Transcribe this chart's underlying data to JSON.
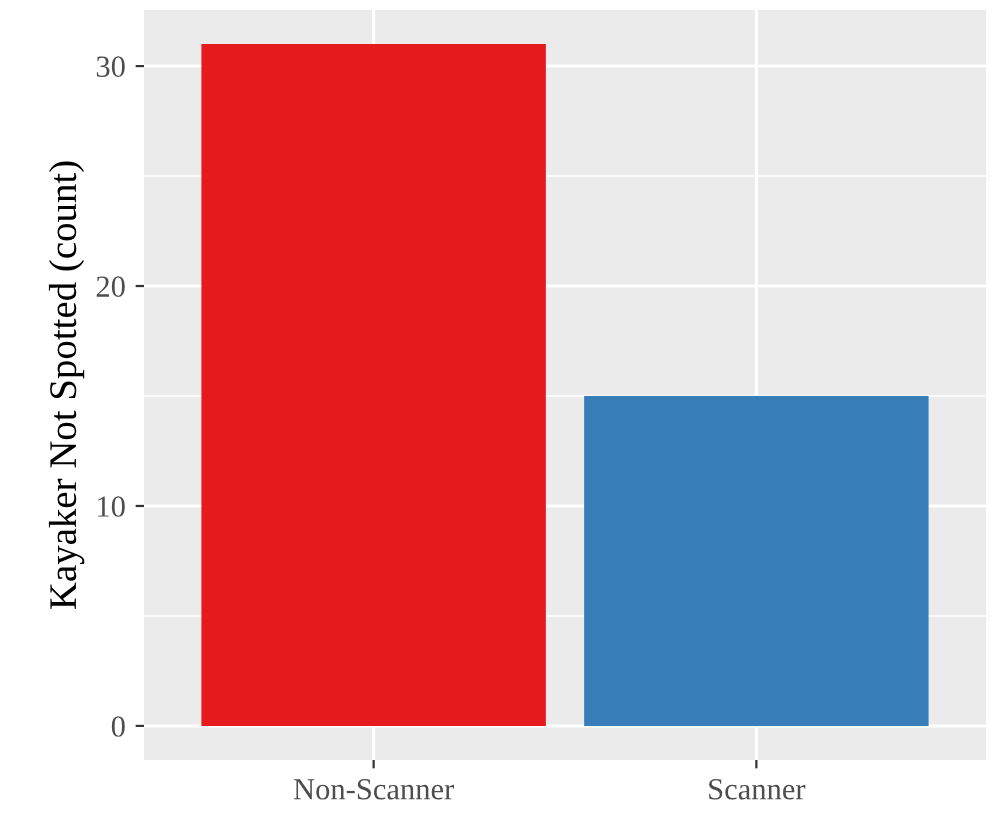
{
  "chart_data": {
    "type": "bar",
    "ylabel": "Kayaker Not Spotted (count)",
    "categories": [
      "Non-Scanner",
      "Scanner"
    ],
    "values": [
      31,
      15
    ],
    "colors": [
      "#e41a1c",
      "#377eb8"
    ],
    "ylim": [
      -1.55,
      32.55
    ],
    "yticks": [
      0,
      10,
      20,
      30
    ],
    "grid": true
  }
}
